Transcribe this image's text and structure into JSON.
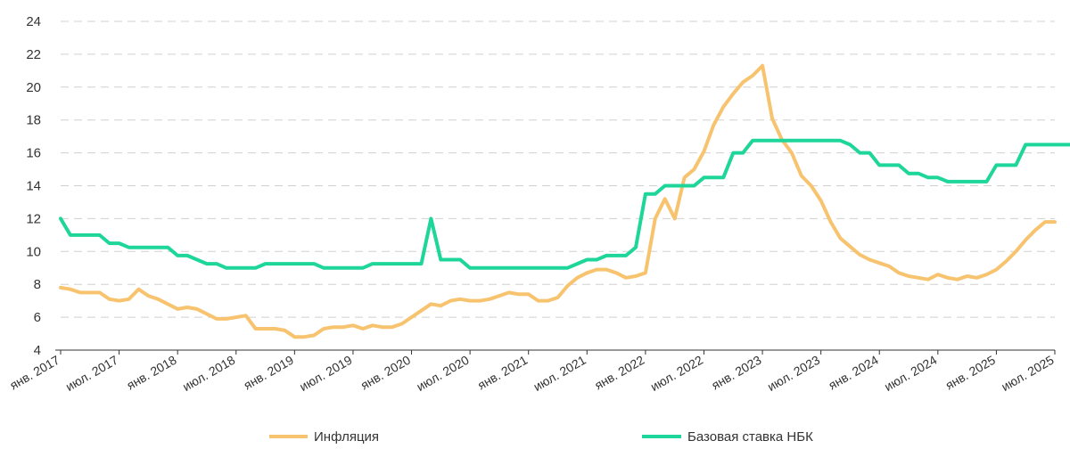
{
  "chart_data": {
    "type": "line",
    "title": "",
    "xlabel": "",
    "ylabel": "",
    "ylim": [
      4,
      24
    ],
    "yticks": [
      4,
      6,
      8,
      10,
      12,
      14,
      16,
      18,
      20,
      22,
      24
    ],
    "grid": true,
    "legend_position": "bottom",
    "x_tick_labels": [
      "янв. 2017",
      "июл. 2017",
      "янв. 2018",
      "июл. 2018",
      "янв. 2019",
      "июл. 2019",
      "янв. 2020",
      "июл. 2020",
      "янв. 2021",
      "июл. 2021",
      "янв. 2022",
      "июл. 2022",
      "янв. 2023",
      "июл. 2023",
      "янв. 2024",
      "июл. 2024",
      "янв. 2025",
      "июл. 2025"
    ],
    "x_start": "2017-01",
    "series": [
      {
        "name": "Инфляция",
        "color": "#F7C36F",
        "values": [
          7.8,
          7.7,
          7.5,
          7.5,
          7.5,
          7.1,
          7.0,
          7.1,
          7.7,
          7.3,
          7.1,
          6.8,
          6.5,
          6.6,
          6.5,
          6.2,
          5.9,
          5.9,
          6.0,
          6.1,
          5.3,
          5.3,
          5.3,
          5.2,
          4.8,
          4.8,
          4.9,
          5.3,
          5.4,
          5.4,
          5.5,
          5.3,
          5.5,
          5.4,
          5.4,
          5.6,
          6.0,
          6.4,
          6.8,
          6.7,
          7.0,
          7.1,
          7.0,
          7.0,
          7.1,
          7.3,
          7.5,
          7.4,
          7.4,
          7.0,
          7.0,
          7.2,
          7.9,
          8.4,
          8.7,
          8.9,
          8.9,
          8.7,
          8.4,
          8.5,
          8.7,
          12.0,
          13.2,
          12.0,
          14.5,
          15.0,
          16.1,
          17.7,
          18.8,
          19.6,
          20.3,
          20.7,
          21.3,
          18.1,
          16.8,
          16.0,
          14.6,
          14.0,
          13.1,
          11.8,
          10.8,
          10.3,
          9.8,
          9.5,
          9.3,
          9.1,
          8.7,
          8.5,
          8.4,
          8.3,
          8.6,
          8.4,
          8.3,
          8.5,
          8.4,
          8.6,
          8.9,
          9.4,
          10.0,
          10.7,
          11.3,
          11.8,
          11.8
        ]
      },
      {
        "name": "Базовая ставка НБК",
        "color": "#1ED699",
        "values": [
          12.0,
          11.0,
          11.0,
          11.0,
          11.0,
          10.5,
          10.5,
          10.25,
          10.25,
          10.25,
          10.25,
          10.25,
          9.75,
          9.75,
          9.5,
          9.25,
          9.25,
          9.0,
          9.0,
          9.0,
          9.0,
          9.25,
          9.25,
          9.25,
          9.25,
          9.25,
          9.25,
          9.0,
          9.0,
          9.0,
          9.0,
          9.0,
          9.25,
          9.25,
          9.25,
          9.25,
          9.25,
          9.25,
          12.0,
          9.5,
          9.5,
          9.5,
          9.0,
          9.0,
          9.0,
          9.0,
          9.0,
          9.0,
          9.0,
          9.0,
          9.0,
          9.0,
          9.0,
          9.25,
          9.5,
          9.5,
          9.75,
          9.75,
          9.75,
          10.25,
          13.5,
          13.5,
          14.0,
          14.0,
          14.0,
          14.0,
          14.5,
          14.5,
          14.5,
          16.0,
          16.0,
          16.75,
          16.75,
          16.75,
          16.75,
          16.75,
          16.75,
          16.75,
          16.75,
          16.75,
          16.75,
          16.5,
          16.0,
          16.0,
          15.25,
          15.25,
          15.25,
          14.75,
          14.75,
          14.5,
          14.5,
          14.25,
          14.25,
          14.25,
          14.25,
          14.25,
          15.25,
          15.25,
          15.25,
          16.5,
          16.5,
          16.5,
          16.5,
          16.5,
          16.5,
          16.5
        ]
      }
    ]
  }
}
